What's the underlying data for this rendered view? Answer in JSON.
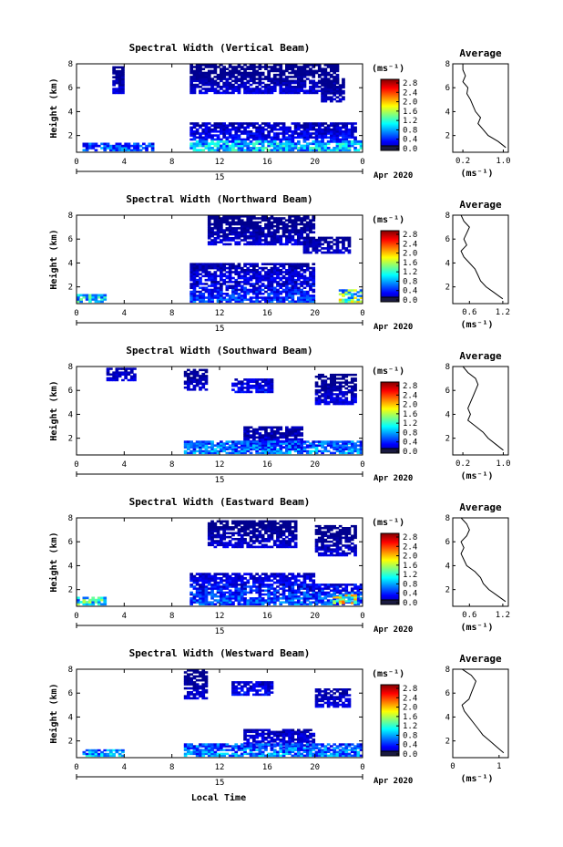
{
  "figure": {
    "xlabel_bottom": "Local Time",
    "date_label": "Apr 2020",
    "day_label": "15",
    "colorbar_unit": "(ms⁻¹)",
    "avg_title": "Average",
    "avg_xlabel": "(ms⁻¹)",
    "ylabel": "Height (km)"
  },
  "chart_data": [
    {
      "type": "heatmap",
      "title": "Spectral Width (Vertical Beam)",
      "x_ticks": [
        "0",
        "4",
        "8",
        "12",
        "16",
        "20",
        "0"
      ],
      "y_ticks": [
        "2",
        "4",
        "6",
        "8"
      ],
      "xlim": [
        0,
        24
      ],
      "ylim": [
        0.6,
        8.0
      ],
      "colorbar": {
        "ticks": [
          "0.0",
          "0.4",
          "0.8",
          "1.2",
          "1.6",
          "2.0",
          "2.4",
          "2.8"
        ],
        "range": [
          0,
          2.8
        ]
      },
      "regions": [
        {
          "t": [
            3.0,
            4.0
          ],
          "h": [
            5.5,
            7.8
          ],
          "level": 0.25
        },
        {
          "t": [
            9.5,
            22.0
          ],
          "h": [
            5.5,
            8.0
          ],
          "level": 0.25
        },
        {
          "t": [
            20.5,
            22.5
          ],
          "h": [
            4.8,
            6.8
          ],
          "level": 0.2
        },
        {
          "t": [
            9.5,
            23.5
          ],
          "h": [
            1.6,
            3.1
          ],
          "level": 0.35
        },
        {
          "t": [
            9.5,
            24.0
          ],
          "h": [
            0.7,
            1.6
          ],
          "level": 0.9
        },
        {
          "t": [
            0.5,
            6.5
          ],
          "h": [
            0.7,
            1.4
          ],
          "level": 0.6
        }
      ],
      "average": {
        "xticks": [
          "0.2",
          "1.0"
        ],
        "xlim": [
          0,
          1.1
        ],
        "yticks": [
          "2",
          "4",
          "6",
          "8"
        ],
        "heights": [
          8.0,
          7.5,
          7.0,
          6.5,
          6.0,
          5.5,
          5.0,
          4.5,
          4.0,
          3.5,
          3.0,
          2.5,
          2.0,
          1.5,
          1.0
        ],
        "values": [
          0.2,
          0.2,
          0.25,
          0.2,
          0.3,
          0.28,
          0.35,
          0.4,
          0.45,
          0.55,
          0.5,
          0.6,
          0.7,
          0.9,
          1.05
        ]
      }
    },
    {
      "type": "heatmap",
      "title": "Spectral Width (Northward Beam)",
      "x_ticks": [
        "0",
        "4",
        "8",
        "12",
        "16",
        "20",
        "0"
      ],
      "y_ticks": [
        "2",
        "4",
        "6",
        "8"
      ],
      "xlim": [
        0,
        24
      ],
      "ylim": [
        0.6,
        8.0
      ],
      "colorbar": {
        "ticks": [
          "0.0",
          "0.4",
          "0.8",
          "1.2",
          "1.6",
          "2.0",
          "2.4",
          "2.8"
        ],
        "range": [
          0,
          2.8
        ]
      },
      "regions": [
        {
          "t": [
            11.0,
            20.0
          ],
          "h": [
            5.5,
            8.0
          ],
          "level": 0.25
        },
        {
          "t": [
            19.0,
            23.0
          ],
          "h": [
            4.8,
            6.2
          ],
          "level": 0.2
        },
        {
          "t": [
            9.5,
            20.0
          ],
          "h": [
            2.5,
            4.0
          ],
          "level": 0.3
        },
        {
          "t": [
            9.5,
            20.0
          ],
          "h": [
            0.7,
            2.5
          ],
          "level": 0.5
        },
        {
          "t": [
            22.0,
            24.0
          ],
          "h": [
            0.7,
            1.8
          ],
          "level": 1.3
        },
        {
          "t": [
            0.0,
            2.5
          ],
          "h": [
            0.7,
            1.4
          ],
          "level": 1.0
        }
      ],
      "average": {
        "xticks": [
          "0.6",
          "1.2"
        ],
        "xlim": [
          0.3,
          1.3
        ],
        "yticks": [
          "2",
          "4",
          "6",
          "8"
        ],
        "heights": [
          8.0,
          7.5,
          7.0,
          6.5,
          6.0,
          5.5,
          5.0,
          4.5,
          4.0,
          3.5,
          3.0,
          2.5,
          2.0,
          1.5,
          1.0
        ],
        "values": [
          0.45,
          0.5,
          0.6,
          0.55,
          0.5,
          0.55,
          0.45,
          0.5,
          0.6,
          0.7,
          0.75,
          0.8,
          0.9,
          1.05,
          1.2
        ]
      }
    },
    {
      "type": "heatmap",
      "title": "Spectral Width (Southward Beam)",
      "x_ticks": [
        "0",
        "4",
        "8",
        "12",
        "16",
        "20",
        "0"
      ],
      "y_ticks": [
        "2",
        "4",
        "6",
        "8"
      ],
      "xlim": [
        0,
        24
      ],
      "ylim": [
        0.6,
        8.0
      ],
      "colorbar": {
        "ticks": [
          "0.0",
          "0.4",
          "0.8",
          "1.2",
          "1.6",
          "2.0",
          "2.4",
          "2.8"
        ],
        "range": [
          0,
          2.8
        ]
      },
      "regions": [
        {
          "t": [
            13.0,
            16.5
          ],
          "h": [
            5.8,
            7.0
          ],
          "level": 0.35
        },
        {
          "t": [
            20.0,
            23.5
          ],
          "h": [
            4.8,
            7.4
          ],
          "level": 0.3
        },
        {
          "t": [
            2.5,
            5.0
          ],
          "h": [
            6.8,
            7.9
          ],
          "level": 0.25
        },
        {
          "t": [
            9.0,
            11.0
          ],
          "h": [
            6.0,
            7.8
          ],
          "level": 0.25
        },
        {
          "t": [
            14.0,
            19.0
          ],
          "h": [
            1.0,
            3.0
          ],
          "level": 0.35
        },
        {
          "t": [
            9.0,
            24.0
          ],
          "h": [
            0.7,
            1.8
          ],
          "level": 0.7
        }
      ],
      "average": {
        "xticks": [
          "0.2",
          "1.0"
        ],
        "xlim": [
          0,
          1.1
        ],
        "yticks": [
          "2",
          "4",
          "6",
          "8"
        ],
        "heights": [
          8.0,
          7.5,
          7.0,
          6.5,
          6.0,
          5.5,
          5.0,
          4.5,
          4.0,
          3.5,
          3.0,
          2.5,
          2.0,
          1.5,
          1.0
        ],
        "values": [
          0.2,
          0.3,
          0.45,
          0.5,
          0.45,
          0.4,
          0.35,
          0.3,
          0.35,
          0.3,
          0.45,
          0.6,
          0.7,
          0.85,
          1.0
        ]
      }
    },
    {
      "type": "heatmap",
      "title": "Spectral Width (Eastward Beam)",
      "x_ticks": [
        "0",
        "4",
        "8",
        "12",
        "16",
        "20",
        "0"
      ],
      "y_ticks": [
        "2",
        "4",
        "6",
        "8"
      ],
      "xlim": [
        0,
        24
      ],
      "ylim": [
        0.6,
        8.0
      ],
      "colorbar": {
        "ticks": [
          "0.0",
          "0.4",
          "0.8",
          "1.2",
          "1.6",
          "2.0",
          "2.4",
          "2.8"
        ],
        "range": [
          0,
          2.8
        ]
      },
      "regions": [
        {
          "t": [
            11.0,
            18.5
          ],
          "h": [
            5.5,
            7.8
          ],
          "level": 0.25
        },
        {
          "t": [
            20.0,
            23.5
          ],
          "h": [
            4.8,
            7.4
          ],
          "level": 0.25
        },
        {
          "t": [
            9.5,
            20.0
          ],
          "h": [
            2.5,
            3.4
          ],
          "level": 0.3
        },
        {
          "t": [
            9.5,
            24.0
          ],
          "h": [
            0.7,
            2.5
          ],
          "level": 0.6
        },
        {
          "t": [
            0.0,
            2.5
          ],
          "h": [
            0.7,
            1.4
          ],
          "level": 1.1
        },
        {
          "t": [
            21.5,
            23.5
          ],
          "h": [
            0.8,
            1.6
          ],
          "level": 1.5
        }
      ],
      "average": {
        "xticks": [
          "0.6",
          "1.2"
        ],
        "xlim": [
          0.3,
          1.3
        ],
        "yticks": [
          "2",
          "4",
          "6",
          "8"
        ],
        "heights": [
          8.0,
          7.5,
          7.0,
          6.5,
          6.0,
          5.5,
          5.0,
          4.5,
          4.0,
          3.5,
          3.0,
          2.5,
          2.0,
          1.5,
          1.0
        ],
        "values": [
          0.45,
          0.55,
          0.6,
          0.55,
          0.45,
          0.5,
          0.45,
          0.5,
          0.55,
          0.7,
          0.8,
          0.85,
          0.95,
          1.1,
          1.25
        ]
      }
    },
    {
      "type": "heatmap",
      "title": "Spectral Width (Westward Beam)",
      "x_ticks": [
        "0",
        "4",
        "8",
        "12",
        "16",
        "20",
        "0"
      ],
      "y_ticks": [
        "2",
        "4",
        "6",
        "8"
      ],
      "xlim": [
        0,
        24
      ],
      "ylim": [
        0.6,
        8.0
      ],
      "colorbar": {
        "ticks": [
          "0.0",
          "0.4",
          "0.8",
          "1.2",
          "1.6",
          "2.0",
          "2.4",
          "2.8"
        ],
        "range": [
          0,
          2.8
        ]
      },
      "regions": [
        {
          "t": [
            13.0,
            16.5
          ],
          "h": [
            5.8,
            7.0
          ],
          "level": 0.35
        },
        {
          "t": [
            20.0,
            23.0
          ],
          "h": [
            4.8,
            6.4
          ],
          "level": 0.3
        },
        {
          "t": [
            9.0,
            11.0
          ],
          "h": [
            5.5,
            8.0
          ],
          "level": 0.25
        },
        {
          "t": [
            14.0,
            20.0
          ],
          "h": [
            1.4,
            3.0
          ],
          "level": 0.35
        },
        {
          "t": [
            9.0,
            24.0
          ],
          "h": [
            0.7,
            1.8
          ],
          "level": 0.7
        },
        {
          "t": [
            0.5,
            4.0
          ],
          "h": [
            0.7,
            1.3
          ],
          "level": 0.8
        }
      ],
      "average": {
        "xticks": [
          "0",
          "1"
        ],
        "xlim": [
          0,
          1.2
        ],
        "yticks": [
          "2",
          "4",
          "6",
          "8"
        ],
        "heights": [
          8.0,
          7.5,
          7.0,
          6.5,
          6.0,
          5.5,
          5.0,
          4.5,
          4.0,
          3.5,
          3.0,
          2.5,
          2.0,
          1.5,
          1.0
        ],
        "values": [
          0.2,
          0.4,
          0.5,
          0.45,
          0.4,
          0.35,
          0.2,
          0.25,
          0.35,
          0.45,
          0.55,
          0.65,
          0.8,
          0.95,
          1.1
        ]
      }
    }
  ]
}
